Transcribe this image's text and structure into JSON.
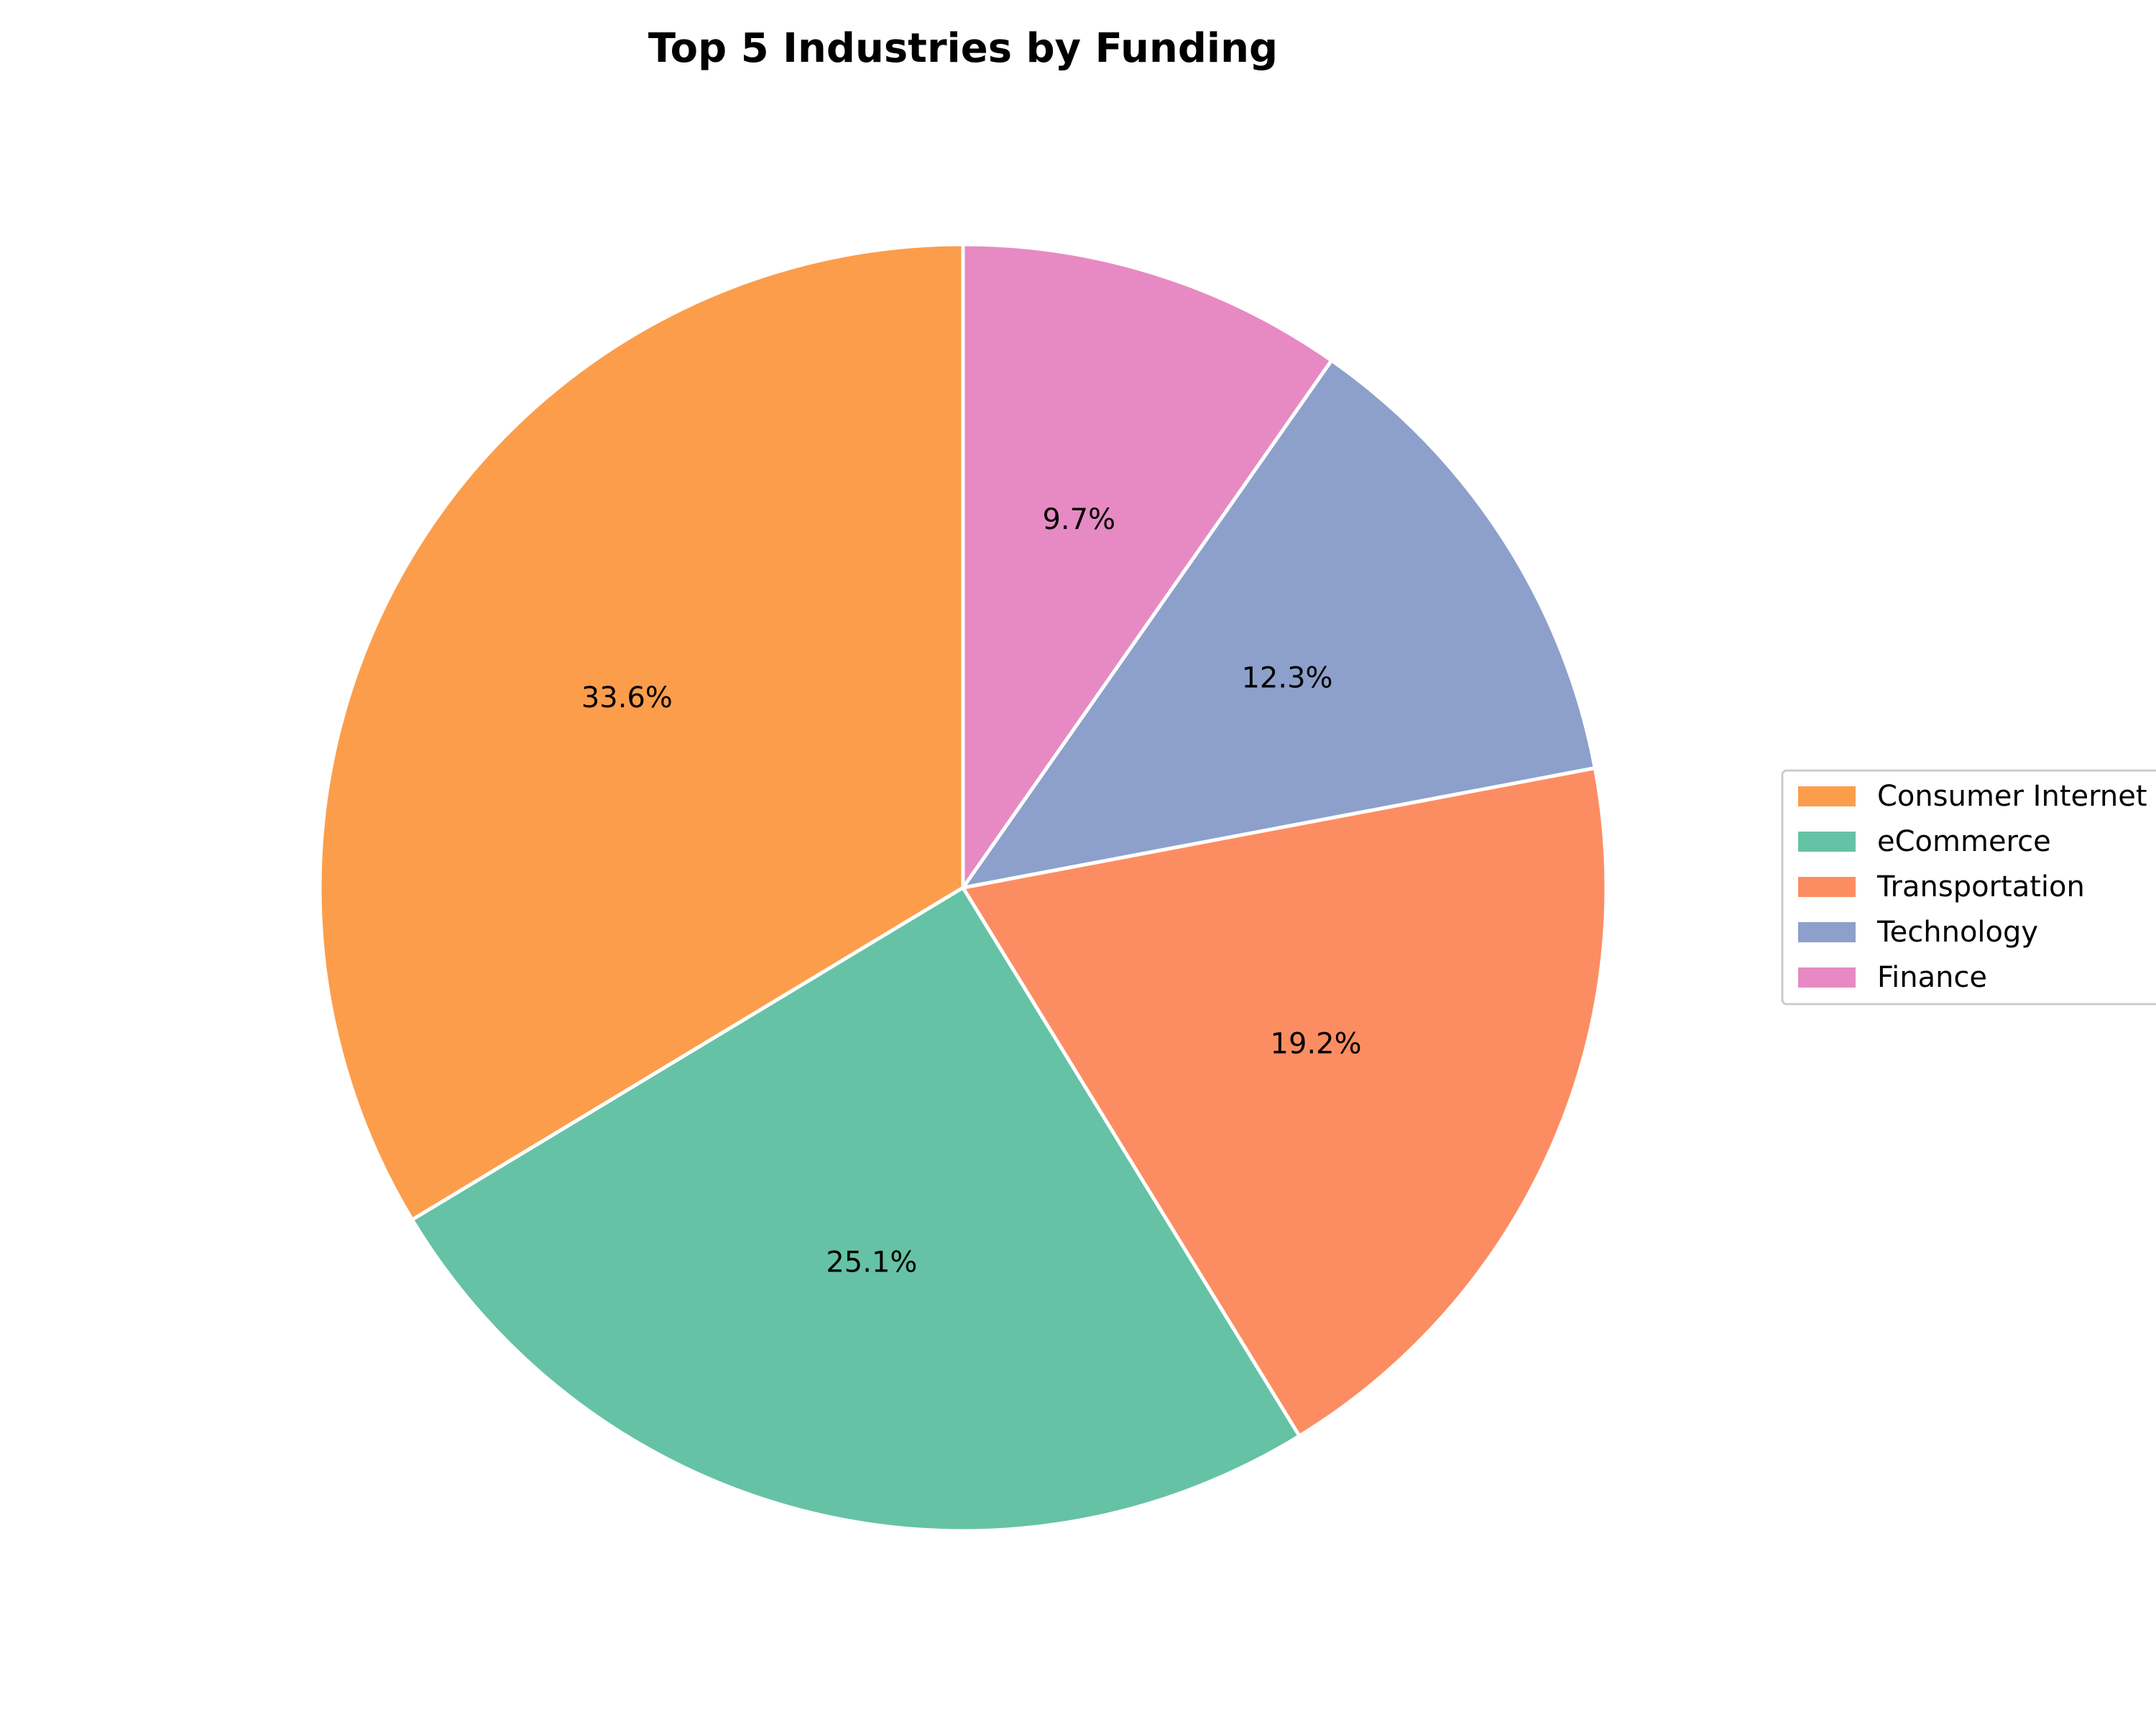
{
  "chart_data": {
    "type": "pie",
    "title": "Top 5 Industries by Funding",
    "categories": [
      "Consumer Internet",
      "eCommerce",
      "Transportation",
      "Technology",
      "Finance"
    ],
    "values": [
      33.6,
      25.1,
      19.2,
      12.3,
      9.7
    ],
    "value_labels": [
      "33.6%",
      "25.1%",
      "19.2%",
      "12.3%",
      "9.7%"
    ],
    "colors": [
      "#fc9d4b",
      "#66c2a5",
      "#fc8d62",
      "#8da0cb",
      "#e78ac3"
    ],
    "start_angle_deg": 90,
    "direction": "counterclockwise",
    "legend": {
      "placement": "right",
      "entries": [
        "Consumer Internet",
        "eCommerce",
        "Transportation",
        "Technology",
        "Finance"
      ]
    }
  }
}
